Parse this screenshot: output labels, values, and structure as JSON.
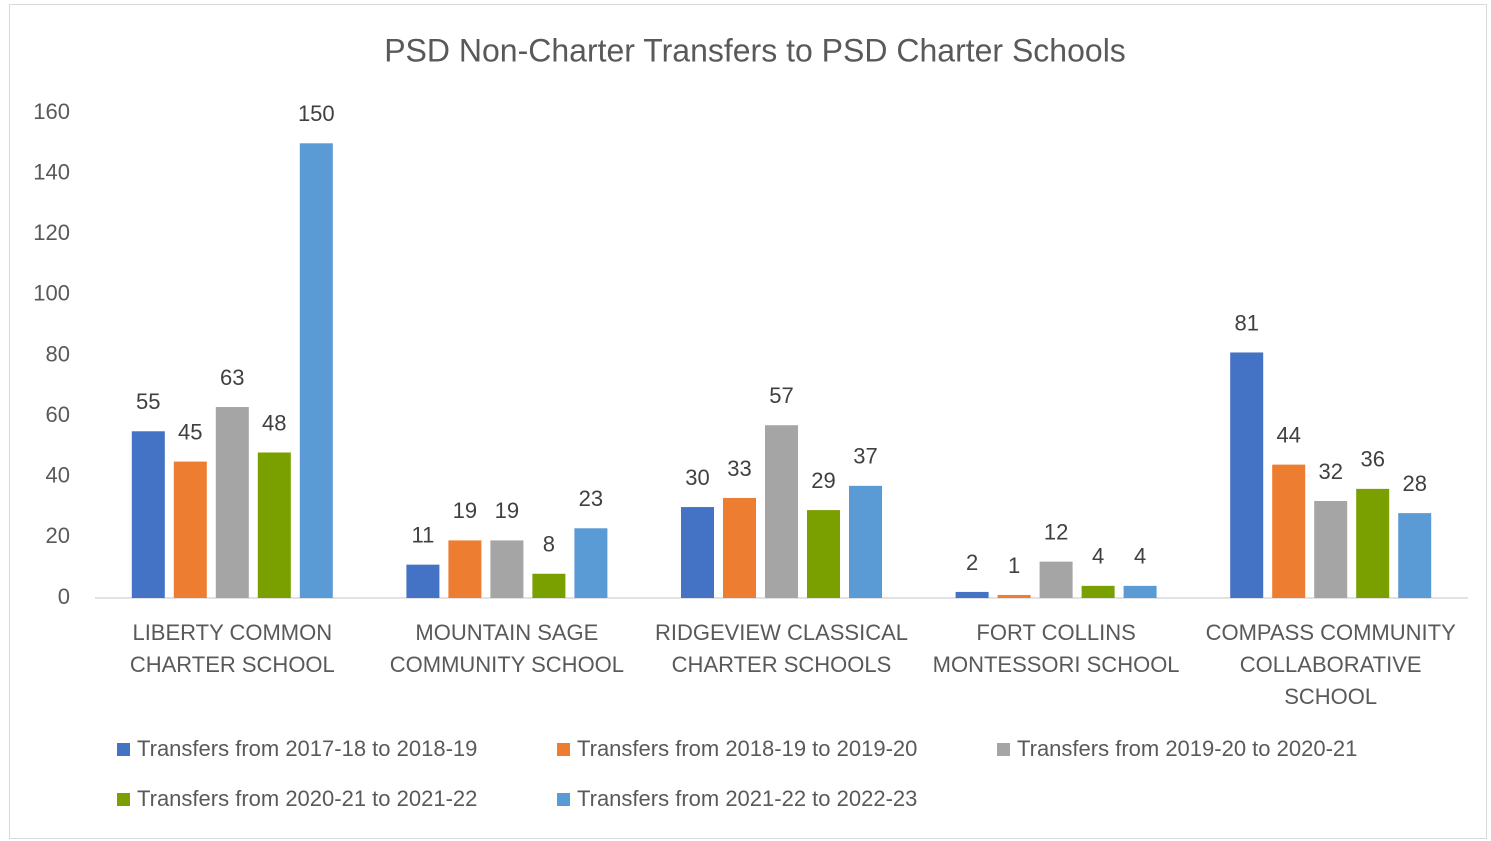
{
  "chart_data": {
    "type": "bar",
    "title": "PSD Non-Charter Transfers to PSD Charter Schools",
    "categories": [
      "LIBERTY COMMON CHARTER SCHOOL",
      "MOUNTAIN SAGE COMMUNITY SCHOOL",
      "RIDGEVIEW CLASSICAL CHARTER SCHOOLS",
      "FORT COLLINS MONTESSORI SCHOOL",
      "COMPASS COMMUNITY COLLABORATIVE SCHOOL"
    ],
    "series": [
      {
        "name": "Transfers from 2017-18 to 2018-19",
        "color": "#4472c4",
        "values": [
          55,
          11,
          30,
          2,
          81
        ]
      },
      {
        "name": "Transfers from 2018-19 to 2019-20",
        "color": "#ed7d31",
        "values": [
          45,
          19,
          33,
          1,
          44
        ]
      },
      {
        "name": "Transfers from 2019-20 to 2020-21",
        "color": "#a5a5a5",
        "values": [
          63,
          19,
          57,
          12,
          32
        ]
      },
      {
        "name": "Transfers from 2020-21 to 2021-22",
        "color": "#7aa000",
        "values": [
          48,
          8,
          29,
          4,
          36
        ]
      },
      {
        "name": "Transfers from 2021-22 to 2022-23",
        "color": "#5b9bd5",
        "values": [
          150,
          23,
          37,
          4,
          28
        ]
      }
    ],
    "ylim": [
      0,
      160
    ],
    "yticks": [
      0,
      20,
      40,
      60,
      80,
      100,
      120,
      140,
      160
    ],
    "grid": false,
    "legend": "bottom"
  }
}
